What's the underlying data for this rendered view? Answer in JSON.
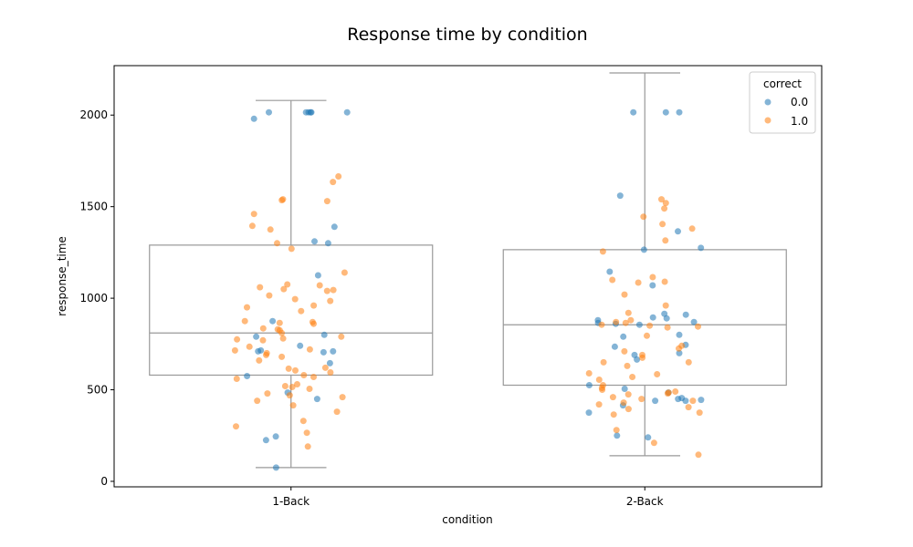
{
  "chart_data": {
    "type": "box+strip",
    "title": "Response time by condition",
    "xlabel": "condition",
    "ylabel": "response_time",
    "categories": [
      "1-Back",
      "2-Back"
    ],
    "ylim": [
      -30,
      2270
    ],
    "yticks": [
      0,
      500,
      1000,
      1500,
      2000
    ],
    "grid": false,
    "legend": {
      "title": "correct",
      "placement": "top-right",
      "entries": [
        {
          "label": "0.0",
          "color": "#1f77b4"
        },
        {
          "label": "1.0",
          "color": "#ff7f0e"
        }
      ]
    },
    "boxes": [
      {
        "category": "1-Back",
        "whisker_low": 75,
        "q1": 580,
        "median": 810,
        "q3": 1290,
        "whisker_high": 2080
      },
      {
        "category": "2-Back",
        "whisker_low": 140,
        "q1": 525,
        "median": 855,
        "q3": 1265,
        "whisker_high": 2230
      }
    ],
    "points": [
      {
        "category": "1-Back",
        "correct": "0.0",
        "values": [
          2015,
          2015,
          2015,
          2015,
          2015,
          2015,
          1980,
          1390,
          1310,
          1300,
          1125,
          875,
          800,
          790,
          740,
          715,
          710,
          705,
          710,
          645,
          575,
          485,
          450,
          245,
          225,
          75
        ]
      },
      {
        "category": "1-Back",
        "correct": "1.0",
        "values": [
          1665,
          1635,
          1535,
          1540,
          1530,
          1460,
          1395,
          1375,
          1300,
          1270,
          1140,
          1075,
          1070,
          1060,
          1050,
          1045,
          1040,
          1015,
          995,
          985,
          960,
          950,
          930,
          875,
          870,
          865,
          860,
          835,
          830,
          825,
          810,
          790,
          780,
          775,
          770,
          735,
          720,
          715,
          700,
          690,
          680,
          660,
          620,
          615,
          605,
          595,
          580,
          570,
          560,
          530,
          520,
          515,
          505,
          480,
          470,
          460,
          440,
          415,
          380,
          330,
          300,
          265,
          190
        ]
      },
      {
        "category": "2-Back",
        "correct": "0.0",
        "values": [
          2015,
          2015,
          2015,
          1560,
          1365,
          1275,
          1265,
          1145,
          1070,
          915,
          910,
          895,
          890,
          880,
          870,
          865,
          860,
          855,
          800,
          790,
          745,
          735,
          700,
          690,
          665,
          525,
          505,
          485,
          455,
          450,
          445,
          440,
          440,
          415,
          375,
          250,
          240
        ]
      },
      {
        "category": "2-Back",
        "correct": "1.0",
        "values": [
          1540,
          1520,
          1490,
          1445,
          1405,
          1380,
          1315,
          1255,
          1115,
          1100,
          1090,
          1085,
          1020,
          960,
          920,
          880,
          870,
          865,
          855,
          850,
          845,
          840,
          795,
          740,
          725,
          710,
          690,
          675,
          650,
          650,
          630,
          590,
          585,
          570,
          555,
          525,
          510,
          500,
          490,
          485,
          480,
          475,
          460,
          450,
          440,
          430,
          420,
          405,
          395,
          375,
          365,
          280,
          210,
          145
        ]
      }
    ]
  }
}
